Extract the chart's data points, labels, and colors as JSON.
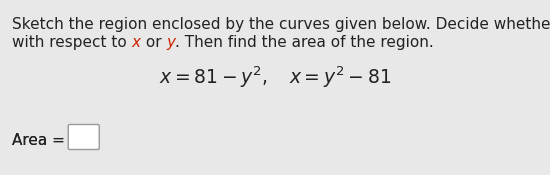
{
  "background_color": "#e8e8e8",
  "content_bg": "#ebebeb",
  "text_color": "#222222",
  "italic_color": "#cc2200",
  "font_size_body": 11.0,
  "font_size_eq": 13.5,
  "line1": "Sketch the region enclosed by the curves given below. Decide whether to integrate",
  "line2_pre": "with respect to ",
  "line2_x": "x",
  "line2_mid": " or ",
  "line2_y": "y",
  "line2_post": ". Then find the area of the region.",
  "equation": "$x = 81 - y^2, \\quad x = y^2 - 81$",
  "area_label": "Area = "
}
